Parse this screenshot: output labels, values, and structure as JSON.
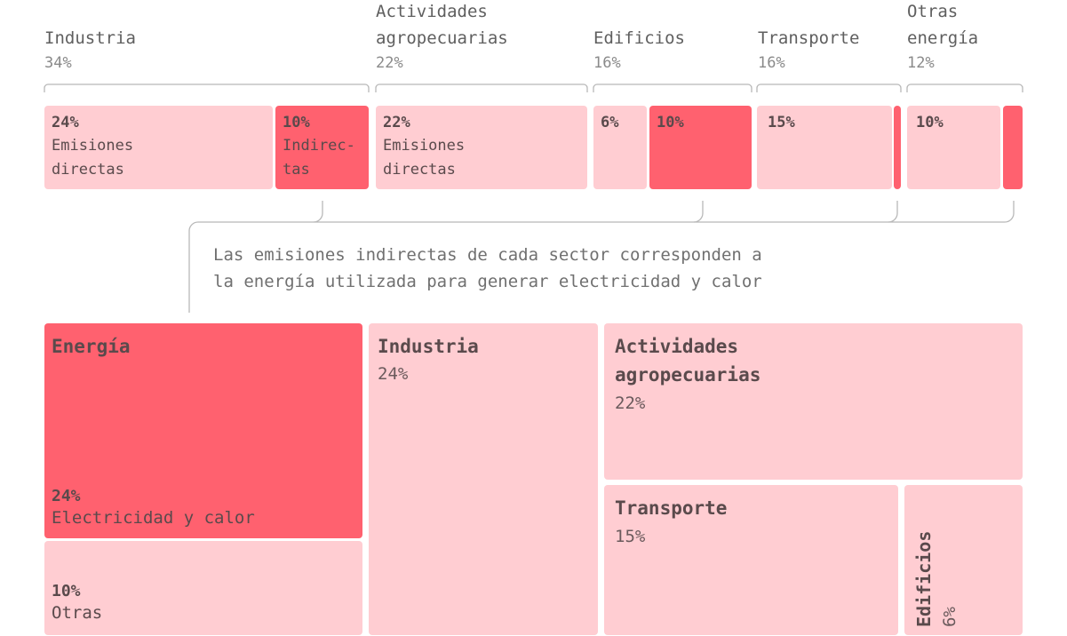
{
  "chart_data": [
    {
      "type": "bar",
      "sectors": [
        {
          "name": "Industria",
          "share": "34%",
          "direct_value": "24%",
          "direct_label": "Emisiones\ndirectas",
          "indirect_value": "10%",
          "indirect_label": "Indirec-\ntas"
        },
        {
          "name": "Actividades\nagropecuarias",
          "share": "22%",
          "direct_value": "22%",
          "direct_label": "Emisiones\ndirectas",
          "indirect_value": "",
          "indirect_label": ""
        },
        {
          "name": "Edificios",
          "share": "16%",
          "direct_value": "6%",
          "direct_label": "",
          "indirect_value": "10%",
          "indirect_label": ""
        },
        {
          "name": "Transporte",
          "share": "16%",
          "direct_value": "15%",
          "direct_label": "",
          "indirect_value": "",
          "indirect_label": ""
        },
        {
          "name": "Otras\nenergía",
          "share": "12%",
          "direct_value": "10%",
          "direct_label": "",
          "indirect_value": "",
          "indirect_label": ""
        }
      ],
      "values": {
        "direct": [
          24,
          22,
          6,
          15,
          10
        ],
        "indirect": [
          10,
          0,
          10,
          1,
          2
        ]
      },
      "colors": {
        "direct": "#ffcdd2",
        "indirect": "#ff616f"
      }
    },
    {
      "type": "treemap",
      "items": [
        {
          "name": "Energía",
          "value": 34,
          "sub": [
            {
              "value_label": "24%",
              "label": "Electricidad y calor",
              "value": 24
            },
            {
              "value_label": "10%",
              "label": "Otras",
              "value": 10
            }
          ]
        },
        {
          "name": "Industria",
          "value_label": "24%",
          "value": 24
        },
        {
          "name": "Actividades\nagropecuarias",
          "value_label": "22%",
          "value": 22
        },
        {
          "name": "Transporte",
          "value_label": "15%",
          "value": 15
        },
        {
          "name": "Edificios",
          "value_label": "6%",
          "value": 6
        }
      ]
    }
  ],
  "note": "Las emisiones indirectas de cada sector corresponden a\nla energía utilizada para generar electricidad y calor"
}
